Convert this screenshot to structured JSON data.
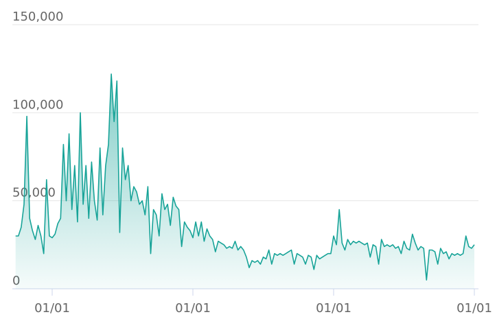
{
  "chart_data": {
    "type": "area",
    "color": "#17a398",
    "ylim": [
      0,
      150000
    ],
    "yticks": [
      0,
      {
        "value": 50000,
        "label": "50,000"
      },
      {
        "value": 100000,
        "label": "100,000"
      },
      {
        "value": 150000,
        "label": "150,000"
      }
    ],
    "grid": true,
    "categories": [
      null,
      null,
      null,
      null,
      null,
      null,
      null,
      null,
      null,
      null,
      null,
      null,
      null,
      "01/01",
      null,
      null,
      null,
      null,
      null,
      null,
      null,
      null,
      null,
      null,
      null,
      null,
      null,
      null,
      null,
      null,
      null,
      null,
      null,
      null,
      null,
      null,
      null,
      null,
      null,
      null,
      null,
      null,
      null,
      null,
      null,
      null,
      null,
      null,
      null,
      null,
      null,
      null,
      null,
      null,
      null,
      null,
      null,
      null,
      null,
      null,
      null,
      null,
      null,
      "01/01",
      null,
      null,
      null,
      null,
      null,
      null,
      null,
      null,
      null,
      null,
      null,
      null,
      null,
      null,
      null,
      null,
      null,
      null,
      null,
      null,
      null,
      null,
      null,
      null,
      null,
      null,
      null,
      null,
      null,
      null,
      null,
      null,
      null,
      null,
      null,
      null,
      null,
      null,
      null,
      null,
      null,
      null,
      null,
      null,
      null,
      null,
      null,
      null,
      null,
      "01/01",
      null,
      null,
      null,
      null,
      null,
      null,
      null,
      null,
      null,
      null,
      null,
      null,
      null,
      null,
      null,
      null,
      null,
      null,
      null,
      null,
      null,
      null,
      null,
      null,
      null,
      null,
      null,
      null,
      null,
      null,
      null,
      null,
      null,
      null,
      null,
      null,
      null,
      null,
      null,
      null,
      null,
      null,
      null,
      null,
      null,
      null,
      null,
      null,
      null,
      "01/01"
    ],
    "values": [
      30000,
      30000,
      35000,
      48000,
      98000,
      40000,
      33000,
      28000,
      36000,
      30000,
      20000,
      62000,
      30000,
      29000,
      31000,
      37000,
      40000,
      82000,
      50000,
      88000,
      45000,
      70000,
      38000,
      100000,
      48000,
      70000,
      40000,
      72000,
      50000,
      39000,
      80000,
      42000,
      70000,
      82000,
      122000,
      95000,
      118000,
      32000,
      80000,
      62000,
      70000,
      50000,
      58000,
      55000,
      48000,
      50000,
      42000,
      58000,
      20000,
      45000,
      42000,
      30000,
      54000,
      45000,
      48000,
      36000,
      52000,
      47000,
      45000,
      24000,
      38000,
      35000,
      33000,
      29000,
      38000,
      30000,
      38000,
      27000,
      34000,
      30000,
      28000,
      21000,
      27000,
      26000,
      25000,
      23000,
      24000,
      23000,
      27000,
      22000,
      24000,
      22000,
      18000,
      12000,
      16000,
      15000,
      16000,
      14000,
      18000,
      17000,
      22000,
      14000,
      20000,
      19000,
      20000,
      19000,
      20000,
      21000,
      22000,
      14000,
      20000,
      19000,
      18000,
      14000,
      19000,
      18000,
      11000,
      19000,
      17000,
      18000,
      19000,
      20000,
      20000,
      30000,
      25000,
      45000,
      26000,
      22000,
      28000,
      25000,
      27000,
      26000,
      27000,
      26000,
      25000,
      26000,
      18000,
      25000,
      24000,
      14000,
      28000,
      24000,
      25000,
      24000,
      25000,
      23000,
      24000,
      20000,
      27000,
      23000,
      22000,
      31000,
      26000,
      22000,
      24000,
      23000,
      5000,
      22000,
      22000,
      21000,
      14000,
      23000,
      20000,
      21000,
      17000,
      20000,
      19000,
      20000,
      19000,
      20000,
      30000,
      24000,
      23000,
      25000
    ]
  }
}
